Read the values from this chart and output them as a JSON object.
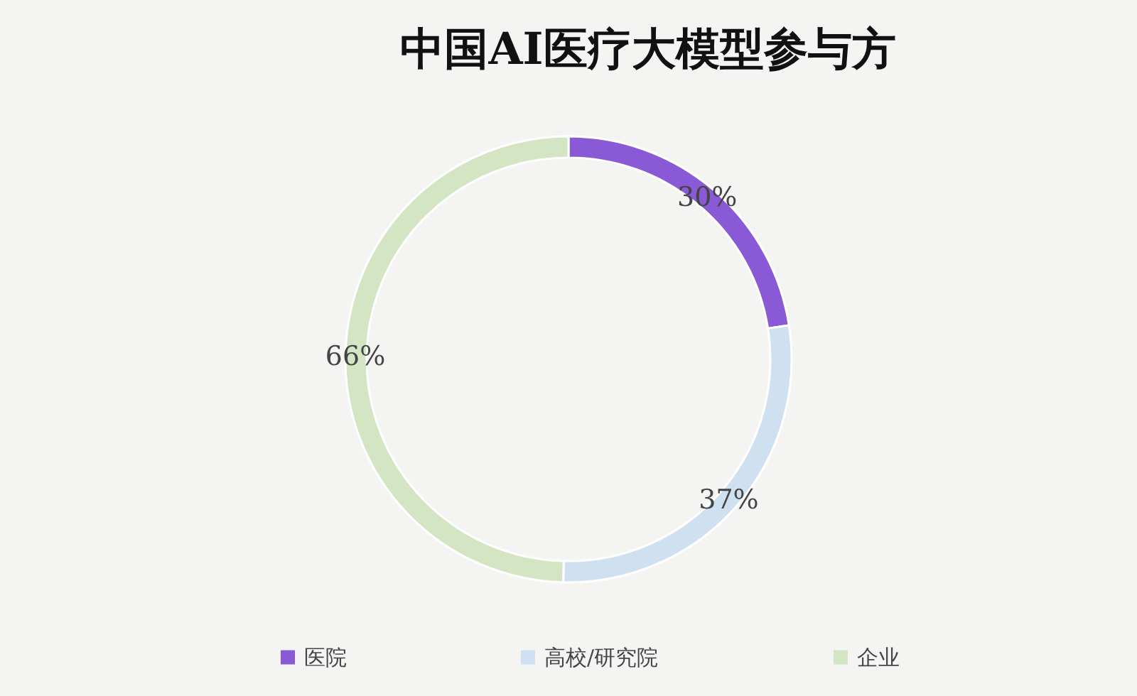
{
  "chart_data": {
    "type": "donut",
    "title": "中国AI医疗大模型参与方",
    "categories": [
      "医院",
      "高校/研究院",
      "企业"
    ],
    "values": [
      30,
      37,
      66
    ],
    "value_labels": [
      "30%",
      "37%",
      "66%"
    ],
    "colors": [
      "#8a5ad6",
      "#cfe0f1",
      "#d3e5c3"
    ],
    "legend": "bottom"
  }
}
